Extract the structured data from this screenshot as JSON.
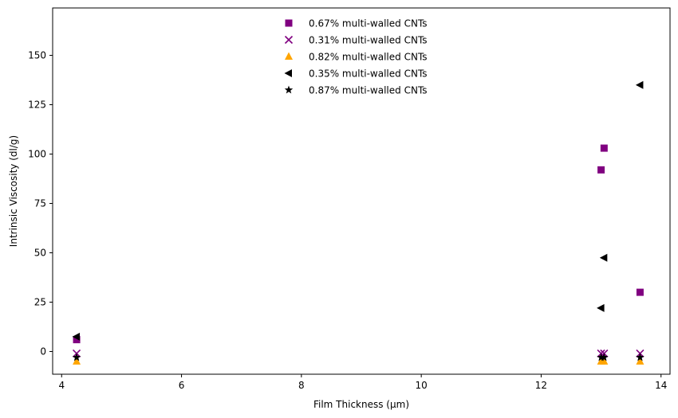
{
  "chart_data": {
    "type": "scatter",
    "xlabel": "Film Thickness (µm)",
    "ylabel": "Intrinsic Viscosity (dl/g)",
    "xlim": [
      3.85,
      14.15
    ],
    "ylim": [
      -11.5,
      174
    ],
    "xticks": [
      4,
      6,
      8,
      10,
      12,
      14
    ],
    "yticks": [
      0,
      25,
      50,
      75,
      100,
      125,
      150
    ],
    "grid": false,
    "legend": "top-center",
    "series": [
      {
        "name": "0.67% multi-walled CNTs",
        "marker": "square",
        "color": "#800080",
        "points": [
          [
            4.25,
            6
          ],
          [
            13.0,
            92
          ],
          [
            13.05,
            103
          ],
          [
            13.65,
            30
          ]
        ]
      },
      {
        "name": "0.31% multi-walled CNTs",
        "marker": "x",
        "color": "#800080",
        "points": [
          [
            4.25,
            -1
          ],
          [
            13.0,
            -1
          ],
          [
            13.05,
            -1
          ],
          [
            13.65,
            -1
          ]
        ]
      },
      {
        "name": "0.82% multi-walled CNTs",
        "marker": "triangle-up",
        "color": "#FFA500",
        "points": [
          [
            4.25,
            -5
          ],
          [
            13.0,
            -5
          ],
          [
            13.05,
            -5
          ],
          [
            13.65,
            -5
          ]
        ]
      },
      {
        "name": "0.35% multi-walled CNTs",
        "marker": "triangle-left",
        "color": "#000000",
        "points": [
          [
            4.25,
            7.5
          ],
          [
            13.0,
            22
          ],
          [
            13.05,
            47.5
          ],
          [
            13.65,
            135
          ]
        ]
      },
      {
        "name": "0.87% multi-walled CNTs",
        "marker": "star",
        "color": "#000000",
        "points": [
          [
            4.25,
            -3
          ],
          [
            13.0,
            -3
          ],
          [
            13.05,
            -3
          ],
          [
            13.65,
            -3
          ]
        ]
      }
    ]
  }
}
